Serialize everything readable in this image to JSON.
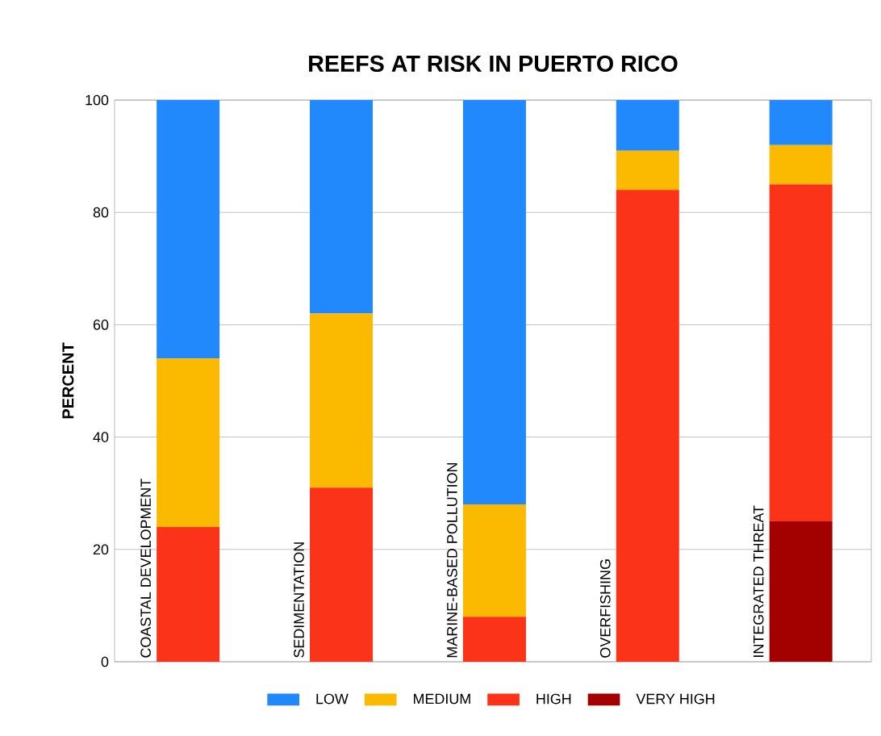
{
  "chart_data": {
    "type": "bar",
    "stacked": true,
    "title": "REEFS AT RISK IN PUERTO RICO",
    "ylabel": "PERCENT",
    "categories": [
      "COASTAL DEVELOPMENT",
      "SEDIMENTATION",
      "MARINE-BASED POLLUTION",
      "OVERFISHING",
      "INTEGRATED THREAT"
    ],
    "series": [
      {
        "name": "VERY HIGH",
        "color": "#a30000",
        "values": [
          0,
          0,
          0,
          0,
          25
        ]
      },
      {
        "name": "HIGH",
        "color": "#fb3319",
        "values": [
          24,
          31,
          8,
          84,
          60
        ]
      },
      {
        "name": "MEDIUM",
        "color": "#fbb900",
        "values": [
          30,
          31,
          20,
          7,
          7
        ]
      },
      {
        "name": "LOW",
        "color": "#2189fb",
        "values": [
          46,
          38,
          72,
          9,
          8
        ]
      }
    ],
    "ylim": [
      0,
      100
    ],
    "yticks": [
      0,
      20,
      40,
      60,
      80,
      100
    ],
    "grid": "y",
    "legend": "bottom"
  }
}
